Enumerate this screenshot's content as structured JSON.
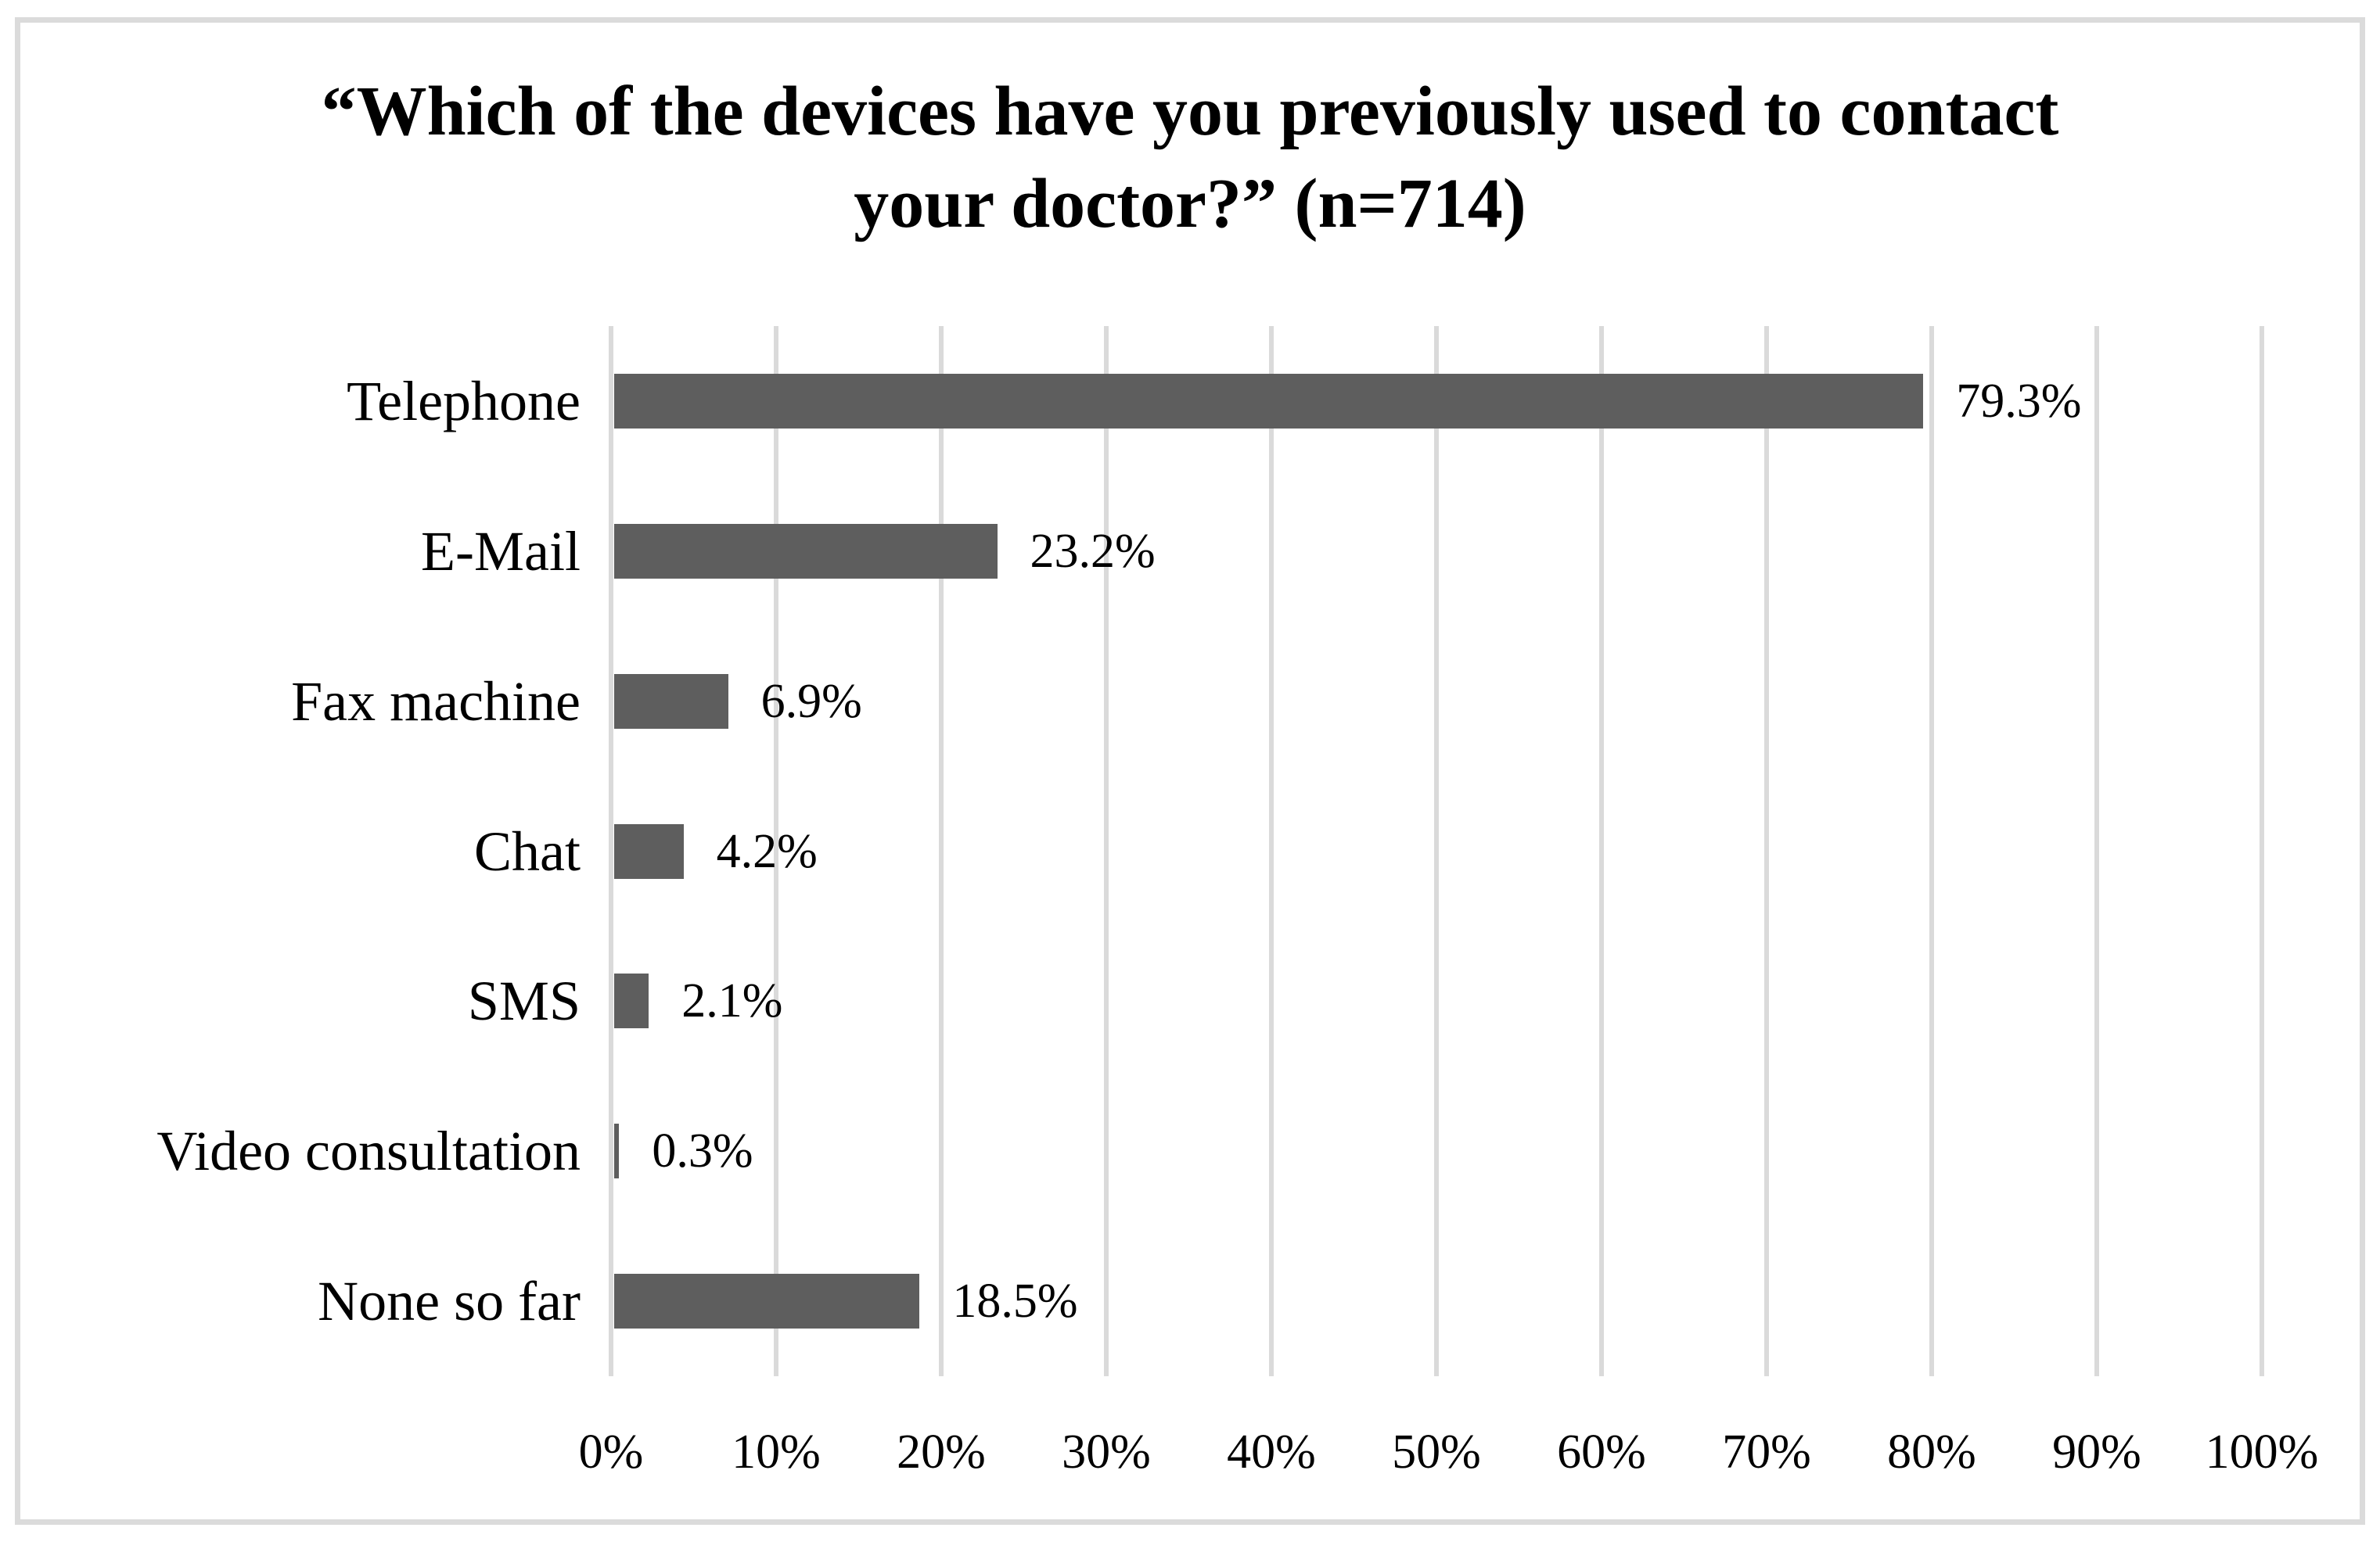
{
  "chart_data": {
    "type": "bar",
    "orientation": "horizontal",
    "title": "“Which of the devices have you previously used to contact your doctor?” (n=714)",
    "title_line1": "“Which of the devices have you previously used to contact",
    "title_line2": "your doctor?” (n=714)",
    "sample_size": 714,
    "categories": [
      "Telephone",
      "E-Mail",
      "Fax machine",
      "Chat",
      "SMS",
      "Video consultation",
      "None so far"
    ],
    "values": [
      79.3,
      23.2,
      6.9,
      4.2,
      2.1,
      0.3,
      18.5
    ],
    "value_labels": [
      "79.3%",
      "23.2%",
      "6.9%",
      "4.2%",
      "2.1%",
      "0.3%",
      "18.5%"
    ],
    "x_tick_labels": [
      "0%",
      "10%",
      "20%",
      "30%",
      "40%",
      "50%",
      "60%",
      "70%",
      "80%",
      "90%",
      "100%"
    ],
    "xlim": [
      0,
      100
    ],
    "grid": "vertical gridlines at every 10%",
    "legend": "none",
    "colors": {
      "bar": "#5e5e5e",
      "gridline": "#dadada",
      "frame_border": "#dbdbdb",
      "text": "#000000",
      "background": "#ffffff"
    }
  }
}
